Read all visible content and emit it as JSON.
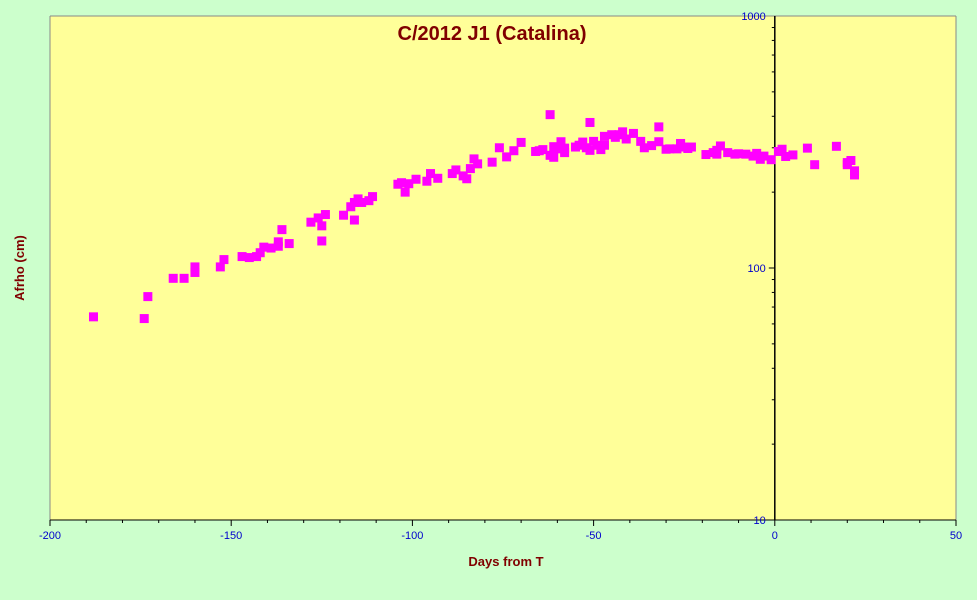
{
  "chart_data": {
    "type": "scatter",
    "title": "C/2012 J1 (Catalina)",
    "xlabel": "Days from T",
    "ylabel": "Afrho (cm)",
    "xlim": [
      -200,
      50
    ],
    "ylim": [
      10,
      1000
    ],
    "yscale": "log",
    "grid": false,
    "x_ticks": [
      "-200",
      "-150",
      "-100",
      "-50",
      "0",
      "50"
    ],
    "y_ticks": [
      "10",
      "100",
      "1000"
    ],
    "colors": {
      "plot_bg": "#ffff99",
      "page_bg": "#ccffcc",
      "marker": "#ff00ff",
      "title": "#800000",
      "ticks": "#0000cc"
    },
    "series": [
      {
        "marker": "square",
        "points": [
          [
            -188,
            64
          ],
          [
            -174,
            63
          ],
          [
            -173,
            77
          ],
          [
            -166,
            91
          ],
          [
            -163,
            91
          ],
          [
            -160,
            96
          ],
          [
            -160,
            101
          ],
          [
            -153,
            101
          ],
          [
            -152,
            108
          ],
          [
            -147,
            111
          ],
          [
            -145,
            110
          ],
          [
            -143,
            111
          ],
          [
            -142,
            115
          ],
          [
            -141,
            121
          ],
          [
            -139,
            120
          ],
          [
            -137,
            122
          ],
          [
            -137,
            127
          ],
          [
            -136,
            142
          ],
          [
            -134,
            125
          ],
          [
            -128,
            152
          ],
          [
            -126,
            158
          ],
          [
            -125,
            147
          ],
          [
            -125,
            128
          ],
          [
            -124,
            163
          ],
          [
            -119,
            162
          ],
          [
            -117,
            175
          ],
          [
            -116,
            155
          ],
          [
            -116,
            182
          ],
          [
            -115,
            188
          ],
          [
            -114,
            182
          ],
          [
            -112,
            185
          ],
          [
            -111,
            192
          ],
          [
            -104,
            215
          ],
          [
            -103,
            218
          ],
          [
            -102,
            200
          ],
          [
            -101,
            216
          ],
          [
            -99,
            225
          ],
          [
            -96,
            221
          ],
          [
            -95,
            237
          ],
          [
            -93,
            227
          ],
          [
            -89,
            237
          ],
          [
            -88,
            245
          ],
          [
            -86,
            232
          ],
          [
            -85,
            226
          ],
          [
            -84,
            248
          ],
          [
            -83,
            271
          ],
          [
            -82,
            259
          ],
          [
            -78,
            263
          ],
          [
            -76,
            300
          ],
          [
            -74,
            276
          ],
          [
            -72,
            292
          ],
          [
            -70,
            315
          ],
          [
            -66,
            290
          ],
          [
            -65,
            292
          ],
          [
            -64,
            295
          ],
          [
            -62,
            280
          ],
          [
            -61,
            275
          ],
          [
            -61,
            303
          ],
          [
            -60,
            297
          ],
          [
            -59,
            317
          ],
          [
            -58,
            287
          ],
          [
            -58,
            299
          ],
          [
            -55,
            302
          ],
          [
            -54,
            307
          ],
          [
            -53,
            316
          ],
          [
            -52,
            300
          ],
          [
            -51,
            293
          ],
          [
            -50,
            318
          ],
          [
            -49,
            307
          ],
          [
            -48,
            295
          ],
          [
            -47,
            333
          ],
          [
            -47,
            307
          ],
          [
            -45,
            338
          ],
          [
            -44,
            330
          ],
          [
            -43,
            338
          ],
          [
            -42,
            347
          ],
          [
            -41,
            325
          ],
          [
            -39,
            342
          ],
          [
            -37,
            318
          ],
          [
            -36,
            300
          ],
          [
            -34,
            306
          ],
          [
            -32,
            317
          ],
          [
            -30,
            296
          ],
          [
            -29,
            297
          ],
          [
            -27,
            297
          ],
          [
            -26,
            311
          ],
          [
            -25,
            302
          ],
          [
            -24,
            298
          ],
          [
            -23,
            302
          ],
          [
            -19,
            282
          ],
          [
            -17,
            287
          ],
          [
            -16,
            293
          ],
          [
            -16,
            283
          ],
          [
            -15,
            305
          ],
          [
            -13,
            287
          ],
          [
            -11,
            283
          ],
          [
            -10,
            284
          ],
          [
            -8,
            283
          ],
          [
            -6,
            278
          ],
          [
            -5,
            285
          ],
          [
            -4,
            270
          ],
          [
            -3,
            278
          ],
          [
            -1,
            269
          ],
          [
            1,
            290
          ],
          [
            2,
            296
          ],
          [
            3,
            277
          ],
          [
            5,
            281
          ],
          [
            9,
            299
          ],
          [
            11,
            257
          ],
          [
            17,
            304
          ],
          [
            20,
            257
          ],
          [
            20,
            262
          ],
          [
            21,
            267
          ],
          [
            22,
            243
          ],
          [
            22,
            234
          ],
          [
            -62,
            406
          ],
          [
            -51,
            378
          ],
          [
            -32,
            363
          ],
          [
            -26,
            312
          ]
        ]
      }
    ]
  }
}
